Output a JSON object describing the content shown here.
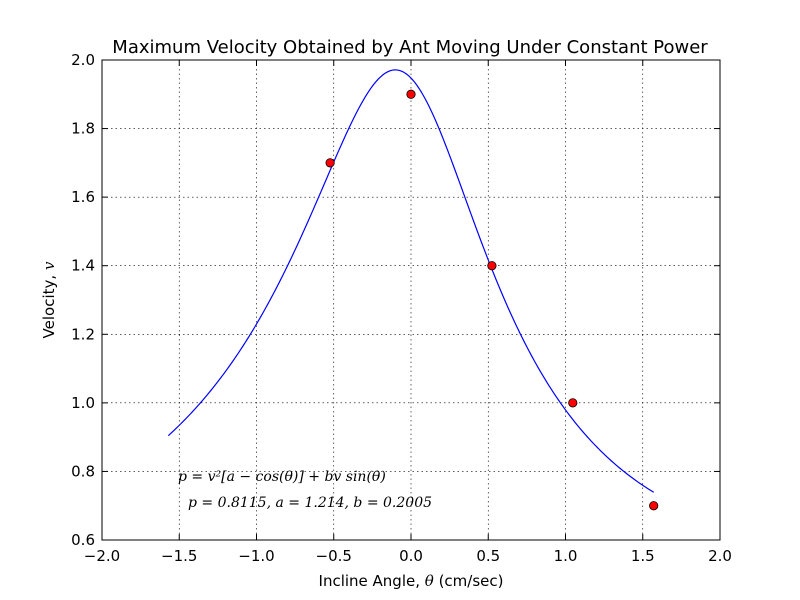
{
  "chart_data": {
    "type": "scatter",
    "title": "Maximum Velocity Obtained by Ant Moving Under Constant Power",
    "xlabel_prefix": "Incline Angle, ",
    "xlabel_symbol": "θ",
    "xlabel_suffix": " (cm/sec)",
    "ylabel_prefix": "Velocity, ",
    "ylabel_symbol": "v",
    "xlim": [
      -2.0,
      2.0
    ],
    "ylim": [
      0.6,
      2.0
    ],
    "xticks": [
      "−2.0",
      "−1.5",
      "−1.0",
      "−0.5",
      "0.0",
      "0.5",
      "1.0",
      "1.5",
      "2.0"
    ],
    "xtick_values": [
      -2.0,
      -1.5,
      -1.0,
      -0.5,
      0.0,
      0.5,
      1.0,
      1.5,
      2.0
    ],
    "yticks": [
      "0.6",
      "0.8",
      "1.0",
      "1.2",
      "1.4",
      "1.6",
      "1.8",
      "2.0"
    ],
    "ytick_values": [
      0.6,
      0.8,
      1.0,
      1.2,
      1.4,
      1.6,
      1.8,
      2.0
    ],
    "grid": true,
    "points": {
      "x": [
        -0.5236,
        0.0,
        0.5236,
        1.0472,
        1.5708
      ],
      "y": [
        1.7,
        1.9,
        1.4,
        1.0,
        0.7
      ],
      "color": "#ff0000"
    },
    "fit": {
      "p": 0.8115,
      "a": 1.214,
      "b": 0.2005,
      "x_range": [
        -1.5708,
        1.5708
      ],
      "color": "#0000ff"
    },
    "annotations": [
      "p = v²[a − cos(θ)] + bv sin(θ)",
      "p = 0.8115, a = 1.214, b = 0.2005"
    ]
  }
}
